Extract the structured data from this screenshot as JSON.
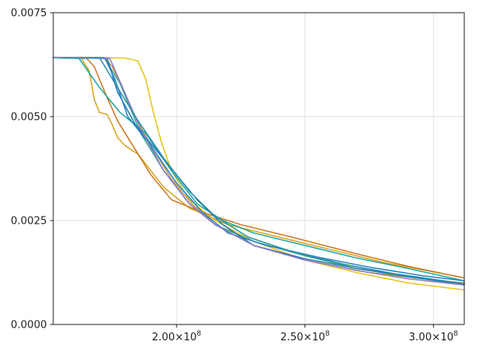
{
  "chart_data": {
    "type": "line",
    "title": "",
    "xlabel": "",
    "ylabel": "",
    "xlim": [
      152000000,
      312000000
    ],
    "ylim": [
      0,
      0.0075
    ],
    "grid": true,
    "legend": "none",
    "x_ticks": [
      {
        "value": 200000000,
        "mantissa": "2.00",
        "exp": "8"
      },
      {
        "value": 250000000,
        "mantissa": "2.50",
        "exp": "8"
      },
      {
        "value": 300000000,
        "mantissa": "3.00",
        "exp": "8"
      }
    ],
    "x_tick_times": "×10",
    "y_ticks": [
      {
        "value": 0,
        "label": "0.0000"
      },
      {
        "value": 0.0025,
        "label": "0.0025"
      },
      {
        "value": 0.005,
        "label": "0.0050"
      },
      {
        "value": 0.0075,
        "label": "0.0075"
      }
    ],
    "series": [
      {
        "color": "#e6c619",
        "points": [
          [
            152000000,
            0.00642
          ],
          [
            170000000,
            0.00642
          ],
          [
            180000000,
            0.00641
          ],
          [
            185000000,
            0.00634
          ],
          [
            188000000,
            0.0059
          ],
          [
            191000000,
            0.0051
          ],
          [
            194000000,
            0.0044
          ],
          [
            198000000,
            0.0037
          ],
          [
            205000000,
            0.003
          ],
          [
            215000000,
            0.0025
          ],
          [
            230000000,
            0.002
          ],
          [
            250000000,
            0.00155
          ],
          [
            270000000,
            0.00125
          ],
          [
            290000000,
            0.001
          ],
          [
            312000000,
            0.00083
          ]
        ]
      },
      {
        "color": "#d4a418",
        "points": [
          [
            152000000,
            0.00642
          ],
          [
            163000000,
            0.0064
          ],
          [
            166000000,
            0.0061
          ],
          [
            168000000,
            0.0054
          ],
          [
            170000000,
            0.0051
          ],
          [
            173000000,
            0.00505
          ],
          [
            175000000,
            0.0048
          ],
          [
            177000000,
            0.0045
          ],
          [
            180000000,
            0.0043
          ],
          [
            185000000,
            0.0041
          ],
          [
            195000000,
            0.0033
          ],
          [
            205000000,
            0.0028
          ],
          [
            220000000,
            0.0024
          ],
          [
            240000000,
            0.0021
          ],
          [
            260000000,
            0.0018
          ],
          [
            280000000,
            0.0015
          ],
          [
            312000000,
            0.00112
          ]
        ]
      },
      {
        "color": "#cc7720",
        "points": [
          [
            152000000,
            0.00642
          ],
          [
            165000000,
            0.0064
          ],
          [
            168000000,
            0.0062
          ],
          [
            172000000,
            0.0056
          ],
          [
            177000000,
            0.0049
          ],
          [
            183000000,
            0.0043
          ],
          [
            190000000,
            0.0036
          ],
          [
            198000000,
            0.003
          ],
          [
            210000000,
            0.0027
          ],
          [
            225000000,
            0.0024
          ],
          [
            245000000,
            0.0021
          ],
          [
            270000000,
            0.0017
          ],
          [
            290000000,
            0.0014
          ],
          [
            312000000,
            0.00112
          ]
        ]
      },
      {
        "color": "#d09a3c",
        "points": [
          [
            152000000,
            0.00642
          ],
          [
            172000000,
            0.00642
          ],
          [
            175000000,
            0.0062
          ],
          [
            178000000,
            0.0058
          ],
          [
            183000000,
            0.0051
          ],
          [
            190000000,
            0.0043
          ],
          [
            198000000,
            0.0035
          ],
          [
            206000000,
            0.0029
          ],
          [
            215000000,
            0.0024
          ],
          [
            230000000,
            0.0019
          ],
          [
            250000000,
            0.00155
          ],
          [
            275000000,
            0.00125
          ],
          [
            300000000,
            0.00107
          ],
          [
            312000000,
            0.001
          ]
        ]
      },
      {
        "color": "#1aa59e",
        "points": [
          [
            152000000,
            0.00642
          ],
          [
            162000000,
            0.0064
          ],
          [
            170000000,
            0.0057
          ],
          [
            178000000,
            0.0051
          ],
          [
            188000000,
            0.0046
          ],
          [
            198000000,
            0.0037
          ],
          [
            208000000,
            0.0029
          ],
          [
            218000000,
            0.0025
          ],
          [
            230000000,
            0.0022
          ],
          [
            250000000,
            0.0019
          ],
          [
            270000000,
            0.0016
          ],
          [
            290000000,
            0.00135
          ],
          [
            312000000,
            0.00105
          ]
        ]
      },
      {
        "color": "#3aa889",
        "points": [
          [
            152000000,
            0.00642
          ],
          [
            172000000,
            0.0064
          ],
          [
            178000000,
            0.0058
          ],
          [
            186000000,
            0.0046
          ],
          [
            195000000,
            0.0037
          ],
          [
            205000000,
            0.0029
          ],
          [
            215000000,
            0.0024
          ],
          [
            230000000,
            0.002
          ],
          [
            250000000,
            0.00165
          ],
          [
            270000000,
            0.00135
          ],
          [
            290000000,
            0.00115
          ],
          [
            312000000,
            0.00098
          ]
        ]
      },
      {
        "color": "#1f77b4",
        "points": [
          [
            152000000,
            0.00642
          ],
          [
            173000000,
            0.0064
          ],
          [
            177000000,
            0.0056
          ],
          [
            184000000,
            0.0048
          ],
          [
            192000000,
            0.0042
          ],
          [
            200000000,
            0.0036
          ],
          [
            208000000,
            0.003
          ],
          [
            218000000,
            0.0024
          ],
          [
            230000000,
            0.0019
          ],
          [
            250000000,
            0.00158
          ],
          [
            270000000,
            0.00135
          ],
          [
            290000000,
            0.00115
          ],
          [
            312000000,
            0.00096
          ]
        ]
      },
      {
        "color": "#2684c8",
        "points": [
          [
            152000000,
            0.00642
          ],
          [
            172000000,
            0.00642
          ],
          [
            176000000,
            0.0059
          ],
          [
            181000000,
            0.005
          ],
          [
            190000000,
            0.0043
          ],
          [
            200000000,
            0.0034
          ],
          [
            210000000,
            0.0027
          ],
          [
            220000000,
            0.0022
          ],
          [
            235000000,
            0.0019
          ],
          [
            255000000,
            0.00162
          ],
          [
            275000000,
            0.00138
          ],
          [
            295000000,
            0.00118
          ],
          [
            312000000,
            0.00105
          ]
        ]
      },
      {
        "color": "#8a79c4",
        "points": [
          [
            152000000,
            0.00642
          ],
          [
            174000000,
            0.0064
          ],
          [
            179000000,
            0.0057
          ],
          [
            186000000,
            0.0047
          ],
          [
            195000000,
            0.0037
          ],
          [
            205000000,
            0.0029
          ],
          [
            215000000,
            0.0024
          ],
          [
            230000000,
            0.0019
          ],
          [
            250000000,
            0.00155
          ],
          [
            270000000,
            0.0013
          ],
          [
            290000000,
            0.0011
          ],
          [
            312000000,
            0.00095
          ]
        ]
      },
      {
        "color": "#2a91a8",
        "points": [
          [
            152000000,
            0.00642
          ],
          [
            170000000,
            0.00642
          ],
          [
            176000000,
            0.0058
          ],
          [
            185000000,
            0.0049
          ],
          [
            195000000,
            0.004
          ],
          [
            205000000,
            0.0032
          ],
          [
            215000000,
            0.0026
          ],
          [
            228000000,
            0.0021
          ],
          [
            245000000,
            0.00175
          ],
          [
            265000000,
            0.00145
          ],
          [
            285000000,
            0.00122
          ],
          [
            312000000,
            0.00098
          ]
        ]
      }
    ]
  }
}
